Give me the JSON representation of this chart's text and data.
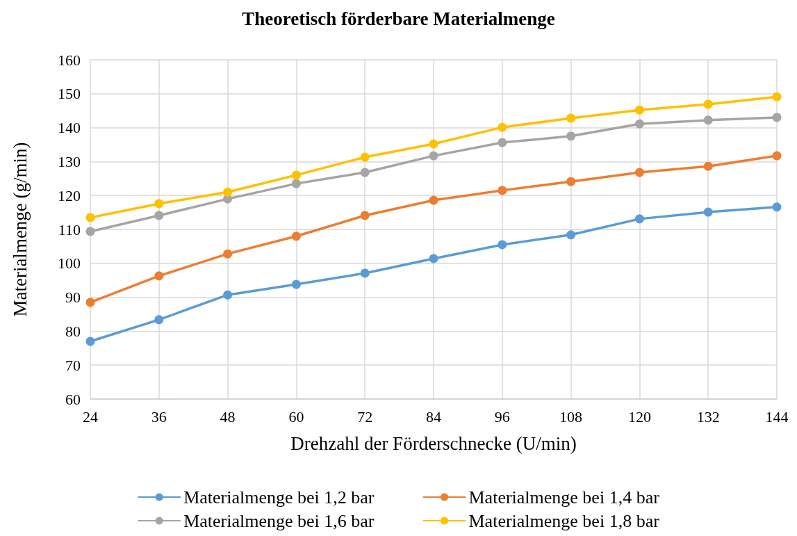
{
  "chart_data": {
    "type": "line",
    "title": "Theoretisch förderbare Materialmenge",
    "xlabel": "Drehzahl der Förderschnecke (U/min)",
    "ylabel": "Materialmenge (g/min)",
    "categories": [
      "24",
      "36",
      "48",
      "60",
      "72",
      "84",
      "96",
      "108",
      "120",
      "132",
      "144"
    ],
    "series": [
      {
        "name": "Materialmenge bei 1,2 bar",
        "color": "#5b9bd5",
        "values": [
          77.0,
          83.4,
          90.7,
          93.8,
          97.1,
          101.4,
          105.5,
          108.4,
          113.1,
          115.1,
          116.6
        ]
      },
      {
        "name": "Materialmenge bei 1,4 bar",
        "color": "#ed7d31",
        "values": [
          88.5,
          96.3,
          102.8,
          108.0,
          114.1,
          118.6,
          121.5,
          124.1,
          126.8,
          128.6,
          131.7
        ]
      },
      {
        "name": "Materialmenge bei 1,6 bar",
        "color": "#a5a5a5",
        "values": [
          109.4,
          114.1,
          119.0,
          123.5,
          126.8,
          131.7,
          135.6,
          137.5,
          141.1,
          142.2,
          143.0
        ]
      },
      {
        "name": "Materialmenge bei 1,8 bar",
        "color": "#ffc000",
        "values": [
          113.5,
          117.6,
          121.0,
          126.0,
          131.3,
          135.2,
          140.1,
          142.8,
          145.2,
          146.9,
          149.1
        ]
      }
    ],
    "ylim": [
      60,
      160
    ],
    "yticks": [
      60,
      70,
      80,
      90,
      100,
      110,
      120,
      130,
      140,
      150,
      160
    ],
    "grid": true,
    "legend": "bottom",
    "marker": "circle",
    "line_style": "solid"
  }
}
